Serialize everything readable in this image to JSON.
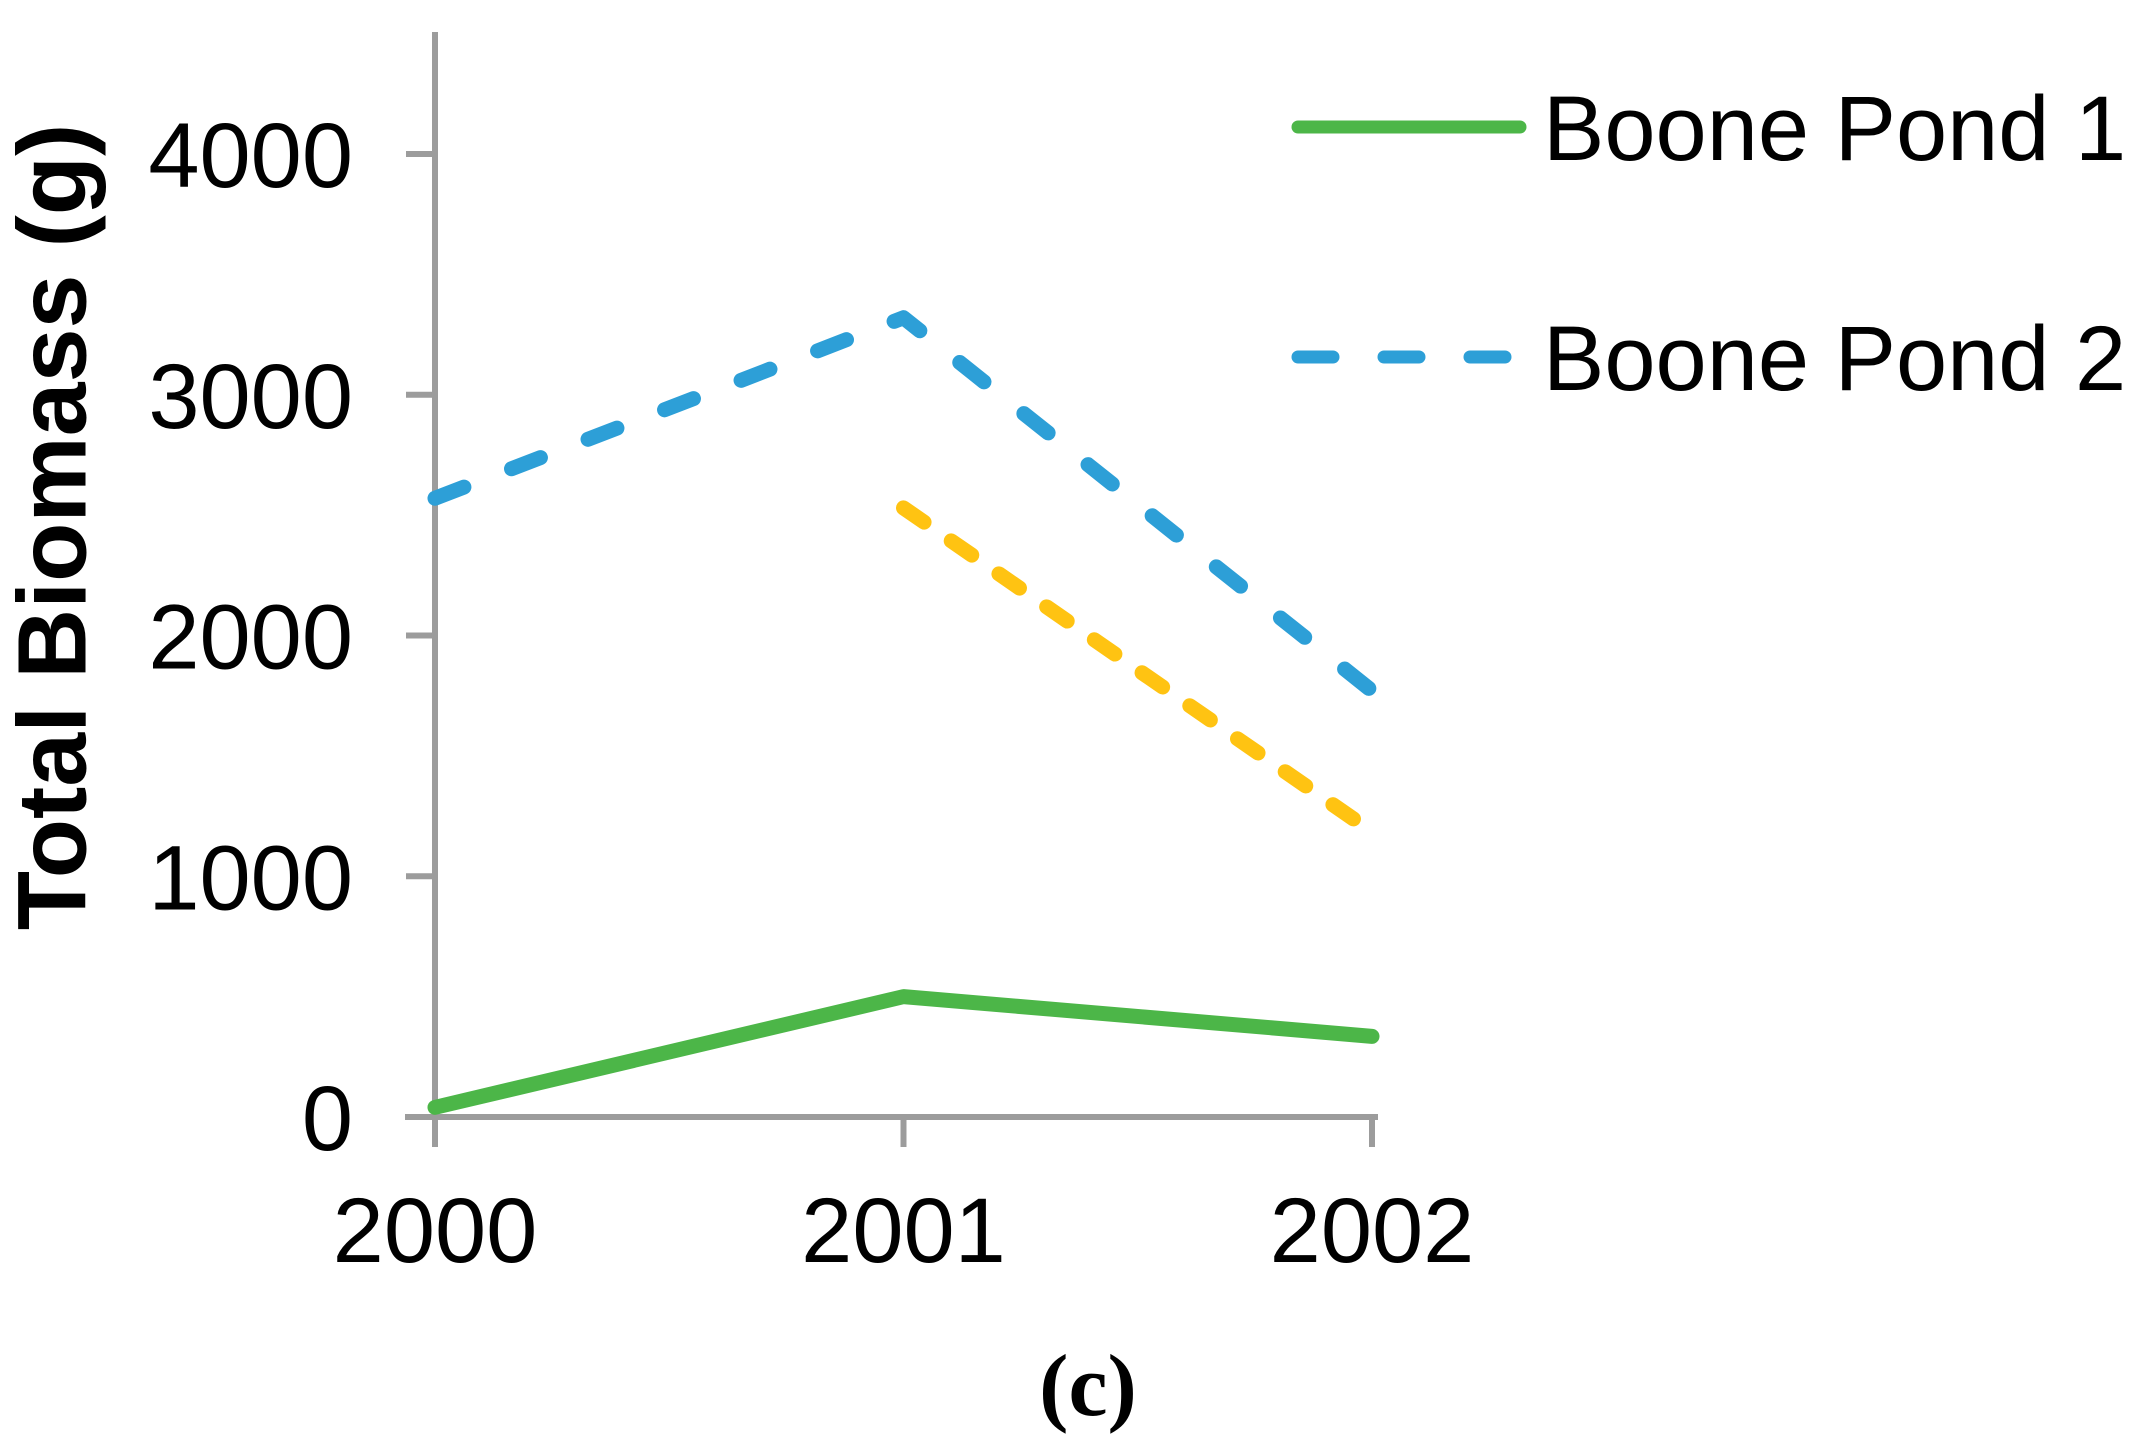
{
  "figure": {
    "caption": "(c)"
  },
  "colors": {
    "pond1_green": "#4CB648",
    "pond2_blue": "#2D9FD7",
    "unlabeled_yellow": "#FFC312",
    "axis_gray": "#9C9C9C",
    "text_black": "#000000",
    "background": "#FFFFFF"
  },
  "chart_data": {
    "type": "line",
    "title": "",
    "xlabel": "",
    "ylabel": "Total Biomass (g)",
    "x_ticks": [
      2000,
      2001,
      2002
    ],
    "x_tick_labels": [
      "2000",
      "2001",
      "2002"
    ],
    "y_ticks": [
      0,
      1000,
      2000,
      3000,
      4000
    ],
    "y_tick_labels": [
      "0",
      "1000",
      "2000",
      "3000",
      "4000"
    ],
    "xlim": [
      2000,
      2002
    ],
    "ylim": [
      0,
      4500
    ],
    "grid": false,
    "legend_position": "top-right",
    "series": [
      {
        "name": "Boone Pond 1",
        "color": "#4CB648",
        "style": "solid",
        "x": [
          2000,
          2001,
          2002
        ],
        "values": [
          40,
          500,
          335
        ],
        "in_legend": true
      },
      {
        "name": "Boone Pond 2",
        "color": "#2D9FD7",
        "style": "dashed",
        "x": [
          2000,
          2001,
          2002
        ],
        "values": [
          2570,
          3320,
          1770
        ],
        "in_legend": true
      },
      {
        "name": "unlabeled yellow series",
        "color": "#FFC312",
        "style": "dashed",
        "x": [
          2001,
          2002
        ],
        "values": [
          2530,
          1185
        ],
        "in_legend": false
      }
    ],
    "legend": [
      {
        "label": "Boone Pond 1",
        "swatch": "solid-line",
        "color": "#4CB648"
      },
      {
        "label": "Boone Pond 2",
        "swatch": "dashed-line",
        "color": "#2D9FD7"
      }
    ]
  }
}
